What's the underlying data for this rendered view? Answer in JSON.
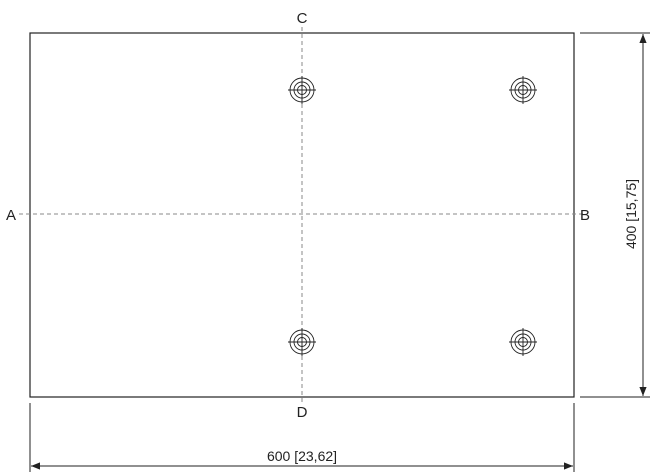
{
  "drawing": {
    "section_labels": {
      "a": "A",
      "b": "B",
      "c": "C",
      "d": "D"
    },
    "width_dimension": "600 [23,62]",
    "height_dimension": "400 [15,75]"
  }
}
